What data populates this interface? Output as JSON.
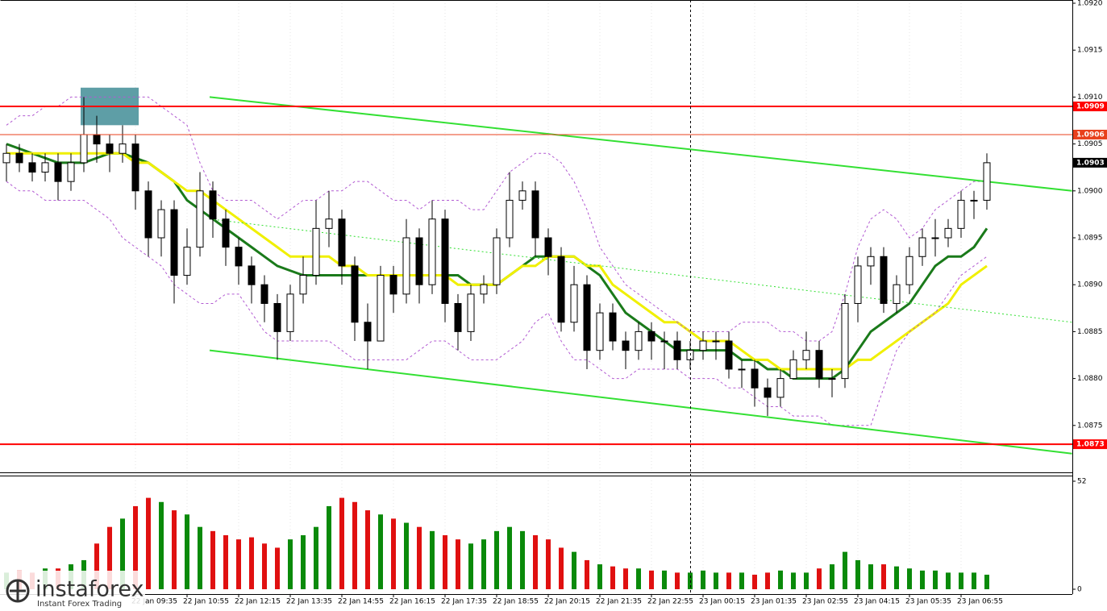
{
  "chart_data": {
    "type": "candlestick",
    "categories": [
      null,
      null,
      null,
      null,
      null,
      null,
      null,
      null,
      null,
      null,
      "22 Jan 09:35",
      null,
      null,
      null,
      "22 Jan 10:55",
      null,
      null,
      null,
      "22 Jan 12:15",
      null,
      null,
      null,
      "22 Jan 13:35",
      null,
      null,
      null,
      "22 Jan 14:55",
      null,
      null,
      null,
      "22 Jan 16:15",
      null,
      null,
      null,
      "22 Jan 17:35",
      null,
      null,
      null,
      "22 Jan 18:55",
      null,
      null,
      null,
      "22 Jan 20:15",
      null,
      null,
      null,
      "22 Jan 21:35",
      null,
      null,
      null,
      "22 Jan 22:55",
      null,
      null,
      null,
      "23 Jan 00:15",
      null,
      null,
      null,
      "23 Jan 01:35",
      null,
      null,
      null,
      "23 Jan 02:55",
      null,
      null,
      null,
      "23 Jan 04:15",
      null,
      null,
      null,
      "23 Jan 05:35",
      null,
      null,
      null,
      "23 Jan 06:55",
      null,
      null
    ],
    "open": [
      1.0903,
      1.0904,
      1.0903,
      1.0902,
      1.0903,
      1.0901,
      1.0903,
      1.0906,
      1.0905,
      1.0904,
      1.0905,
      1.09,
      1.0895,
      1.0898,
      1.0891,
      1.0894,
      1.09,
      1.0897,
      1.0894,
      1.0892,
      1.089,
      1.0888,
      1.0885,
      1.0889,
      1.0891,
      1.0896,
      1.0897,
      1.0892,
      1.0886,
      1.0884,
      1.0891,
      1.0889,
      1.0895,
      1.089,
      1.0897,
      1.0888,
      1.0885,
      1.0889,
      1.089,
      1.0895,
      1.0899,
      1.09,
      1.0895,
      1.0893,
      1.0886,
      1.089,
      1.0883,
      1.0887,
      1.0884,
      1.0883,
      1.0885,
      1.0884,
      1.0884,
      1.0882,
      1.0883,
      1.0884,
      1.0884,
      1.0881,
      1.0881,
      1.0879,
      1.0878,
      1.088,
      1.0882,
      1.0883,
      1.088,
      1.088,
      1.0888,
      1.0892,
      1.0893,
      1.0888,
      1.089,
      1.0893,
      1.0895,
      1.0895,
      1.0896,
      1.0899,
      1.0899
    ],
    "high": [
      1.0905,
      1.0905,
      1.0904,
      1.0904,
      1.0904,
      1.0904,
      1.091,
      1.0908,
      1.0906,
      1.0907,
      1.0906,
      1.0901,
      1.0899,
      1.0899,
      1.0896,
      1.0902,
      1.0901,
      1.0898,
      1.0895,
      1.0893,
      1.0891,
      1.0889,
      1.089,
      1.0893,
      1.0899,
      1.09,
      1.0898,
      1.0893,
      1.0888,
      1.0892,
      1.0892,
      1.0897,
      1.0896,
      1.0899,
      1.0898,
      1.0889,
      1.089,
      1.0891,
      1.0896,
      1.0902,
      1.0901,
      1.0901,
      1.0896,
      1.0894,
      1.0892,
      1.0891,
      1.0888,
      1.0888,
      1.0885,
      1.0886,
      1.0886,
      1.0885,
      1.0885,
      1.0884,
      1.0885,
      1.0885,
      1.0885,
      1.0882,
      1.0882,
      1.088,
      1.0881,
      1.0883,
      1.0885,
      1.0884,
      1.0881,
      1.0889,
      1.0893,
      1.0894,
      1.0894,
      1.0891,
      1.0894,
      1.0896,
      1.0897,
      1.0897,
      1.09,
      1.09,
      1.0904
    ],
    "low": [
      1.0901,
      1.0902,
      1.0901,
      1.0901,
      1.0899,
      1.09,
      1.0902,
      1.0903,
      1.0902,
      1.0903,
      1.0898,
      1.0893,
      1.0893,
      1.0888,
      1.089,
      1.0893,
      1.0895,
      1.0892,
      1.089,
      1.0888,
      1.0886,
      1.0882,
      1.0884,
      1.0888,
      1.089,
      1.0894,
      1.089,
      1.0884,
      1.0881,
      1.0884,
      1.0887,
      1.0888,
      1.0888,
      1.0889,
      1.0886,
      1.0883,
      1.0884,
      1.0888,
      1.0889,
      1.0894,
      1.0898,
      1.0893,
      1.0891,
      1.0885,
      1.0885,
      1.0881,
      1.0882,
      1.0883,
      1.0881,
      1.0882,
      1.0882,
      1.0881,
      1.0881,
      1.0881,
      1.0882,
      1.0882,
      1.088,
      1.0879,
      1.0877,
      1.0876,
      1.0877,
      1.088,
      1.0881,
      1.0879,
      1.0878,
      1.0879,
      1.0886,
      1.089,
      1.0887,
      1.0887,
      1.0889,
      1.0892,
      1.0893,
      1.0894,
      1.0895,
      1.0897,
      1.0898
    ],
    "close": [
      1.0904,
      1.0903,
      1.0902,
      1.0903,
      1.0901,
      1.0903,
      1.0906,
      1.0905,
      1.0904,
      1.0905,
      1.09,
      1.0895,
      1.0898,
      1.0891,
      1.0894,
      1.09,
      1.0897,
      1.0894,
      1.0892,
      1.089,
      1.0888,
      1.0885,
      1.0889,
      1.0891,
      1.0896,
      1.0897,
      1.0892,
      1.0886,
      1.0884,
      1.0891,
      1.0889,
      1.0895,
      1.089,
      1.0897,
      1.0888,
      1.0885,
      1.0889,
      1.089,
      1.0895,
      1.0899,
      1.09,
      1.0895,
      1.0893,
      1.0886,
      1.089,
      1.0883,
      1.0887,
      1.0884,
      1.0883,
      1.0885,
      1.0884,
      1.0884,
      1.0882,
      1.0883,
      1.0884,
      1.0884,
      1.0881,
      1.0881,
      1.0879,
      1.0878,
      1.088,
      1.0882,
      1.0883,
      1.088,
      1.088,
      1.0888,
      1.0892,
      1.0893,
      1.0888,
      1.089,
      1.0893,
      1.0895,
      1.0895,
      1.0896,
      1.0899,
      1.0899,
      1.0903
    ],
    "bull_color": "#ffffff",
    "bear_color": "#000000",
    "series": [
      {
        "color": "#1a7a1a",
        "values": [
          1.0905,
          1.09045,
          1.0904,
          1.09035,
          1.0903,
          1.0903,
          1.0903,
          1.09035,
          1.0904,
          1.0904,
          1.09035,
          1.0903,
          1.0902,
          1.0901,
          1.0899,
          1.0898,
          1.0897,
          1.0896,
          1.0895,
          1.0894,
          1.0893,
          1.0892,
          1.08915,
          1.0891,
          1.0891,
          1.0891,
          1.0891,
          1.0891,
          1.0891,
          1.0891,
          1.0891,
          1.0891,
          1.0891,
          1.0891,
          1.0891,
          1.0891,
          1.089,
          1.089,
          1.089,
          1.0891,
          1.0892,
          1.0893,
          1.0893,
          1.0893,
          1.0893,
          1.0892,
          1.0891,
          1.0889,
          1.0887,
          1.0886,
          1.0885,
          1.0884,
          1.0883,
          1.0883,
          1.0883,
          1.0883,
          1.0883,
          1.0882,
          1.0882,
          1.0881,
          1.0881,
          1.088,
          1.088,
          1.088,
          1.088,
          1.0881,
          1.0883,
          1.0885,
          1.0886,
          1.0887,
          1.0888,
          1.089,
          1.0892,
          1.0893,
          1.0893,
          1.0894,
          1.0896
        ],
        "width": 3,
        "dash": false
      },
      {
        "color": "#f0f000",
        "values": [
          1.0904,
          1.0904,
          1.0904,
          1.0904,
          1.0904,
          1.0904,
          1.0904,
          1.0904,
          1.0904,
          1.0904,
          1.0903,
          1.0903,
          1.0902,
          1.0901,
          1.09,
          1.09,
          1.0899,
          1.0898,
          1.0897,
          1.0896,
          1.0895,
          1.0894,
          1.0893,
          1.0893,
          1.0893,
          1.0893,
          1.0892,
          1.0892,
          1.0891,
          1.0891,
          1.0891,
          1.0891,
          1.0891,
          1.0891,
          1.0891,
          1.089,
          1.089,
          1.089,
          1.089,
          1.0891,
          1.0892,
          1.0892,
          1.0893,
          1.0893,
          1.0893,
          1.0892,
          1.0892,
          1.089,
          1.0889,
          1.0888,
          1.0887,
          1.0886,
          1.0886,
          1.0885,
          1.0884,
          1.0884,
          1.0884,
          1.0883,
          1.0882,
          1.0882,
          1.0881,
          1.0881,
          1.0881,
          1.0881,
          1.0881,
          1.0881,
          1.0882,
          1.0882,
          1.0883,
          1.0884,
          1.0885,
          1.0886,
          1.0887,
          1.0888,
          1.089,
          1.0891,
          1.0892
        ],
        "width": 3,
        "dash": false
      },
      {
        "color": "#b25ad2",
        "values": [
          1.0907,
          1.0908,
          1.0908,
          1.0909,
          1.0909,
          1.091,
          1.091,
          1.091,
          1.091,
          1.091,
          1.091,
          1.091,
          1.0909,
          1.0908,
          1.0907,
          1.0903,
          1.09,
          1.0899,
          1.0899,
          1.0899,
          1.0898,
          1.0897,
          1.0898,
          1.0899,
          1.0899,
          1.09,
          1.09,
          1.0901,
          1.0901,
          1.09,
          1.0899,
          1.0899,
          1.0898,
          1.0899,
          1.0899,
          1.0899,
          1.0898,
          1.0898,
          1.09,
          1.0902,
          1.0903,
          1.0904,
          1.0904,
          1.0903,
          1.0901,
          1.0898,
          1.0894,
          1.0892,
          1.089,
          1.0889,
          1.0888,
          1.0887,
          1.0886,
          1.0885,
          1.0885,
          1.0885,
          1.0885,
          1.0886,
          1.0886,
          1.0886,
          1.0885,
          1.0885,
          1.0884,
          1.0884,
          1.0885,
          1.0889,
          1.0894,
          1.0897,
          1.0898,
          1.0897,
          1.0895,
          1.0896,
          1.0898,
          1.0899,
          1.09,
          1.0901,
          1.0901
        ],
        "width": 1,
        "dash": true
      },
      {
        "color": "#b25ad2",
        "values": [
          1.0901,
          1.09,
          1.09,
          1.0899,
          1.0899,
          1.0899,
          1.0899,
          1.0898,
          1.0897,
          1.0895,
          1.0894,
          1.0893,
          1.0892,
          1.089,
          1.0889,
          1.0888,
          1.0888,
          1.0889,
          1.0889,
          1.0887,
          1.0885,
          1.0884,
          1.0884,
          1.0884,
          1.0884,
          1.0884,
          1.0883,
          1.0882,
          1.0882,
          1.0882,
          1.0882,
          1.0882,
          1.0883,
          1.0884,
          1.0884,
          1.0883,
          1.0882,
          1.0882,
          1.0882,
          1.0883,
          1.0884,
          1.0886,
          1.0887,
          1.0884,
          1.0882,
          1.0882,
          1.0881,
          1.088,
          1.088,
          1.0881,
          1.0881,
          1.0881,
          1.0881,
          1.088,
          1.088,
          1.088,
          1.0879,
          1.0879,
          1.0878,
          1.0877,
          1.0877,
          1.0876,
          1.0876,
          1.0876,
          1.0875,
          1.0875,
          1.0875,
          1.0875,
          1.0879,
          1.0883,
          1.0885,
          1.0886,
          1.0887,
          1.0889,
          1.0891,
          1.0892,
          1.0893
        ],
        "width": 1,
        "dash": true
      }
    ],
    "ylim": [
      1.087,
      1.092
    ],
    "yticks": [
      1.0875,
      {
        "value": 1.088,
        "label": "1.0880"
      },
      1.0885,
      {
        "value": 1.089,
        "label": "1.0890"
      },
      1.0895,
      {
        "value": 1.09,
        "label": "1.0900"
      },
      1.0905,
      {
        "value": 1.091,
        "label": "1.0910"
      },
      1.0915,
      {
        "value": 1.092,
        "label": "1.0920"
      }
    ],
    "grid": true,
    "levels": [
      {
        "value": 1.0909,
        "color": "#ff0000",
        "width": 2
      },
      {
        "value": 1.0906,
        "color": "#e8401c",
        "width": 1
      },
      {
        "value": 1.0873,
        "color": "#ff0000",
        "width": 2
      },
      {
        "value": 1.0903,
        "color": "#000000",
        "width": 0
      }
    ],
    "trend_lines": [
      {
        "color": "#33e033",
        "x": [
          15.75,
          82.6
        ],
        "y": [
          1.091,
          1.09
        ],
        "dash": false
      },
      {
        "color": "#33e033",
        "x": [
          15.75,
          82.6
        ],
        "y": [
          1.0883,
          1.0872
        ],
        "dash": false
      },
      {
        "color": "#33e033",
        "x": [
          15.75,
          82.6
        ],
        "y": [
          1.0897,
          1.0886
        ],
        "dash": true
      }
    ],
    "zone": {
      "color": "#5e9ea6",
      "x": [
        5.75,
        10.25
      ],
      "y": [
        1.0907,
        1.0911
      ]
    },
    "volume": [
      8,
      9,
      8,
      10,
      10,
      12,
      14,
      22,
      30,
      34,
      40,
      44,
      42,
      38,
      36,
      30,
      28,
      26,
      24,
      25,
      22,
      20,
      24,
      26,
      30,
      40,
      44,
      42,
      38,
      36,
      34,
      32,
      30,
      28,
      26,
      24,
      22,
      24,
      28,
      30,
      28,
      26,
      24,
      20,
      18,
      14,
      12,
      11,
      10,
      10,
      9,
      9,
      8,
      8,
      9,
      8,
      8,
      8,
      7,
      8,
      9,
      8,
      8,
      10,
      12,
      18,
      14,
      12,
      12,
      11,
      10,
      9,
      9,
      8,
      8,
      8,
      7
    ],
    "volume_up_color": "#0a8a0a",
    "volume_down_color": "#e01010",
    "vlim": [
      0,
      52
    ],
    "vticks": [
      0,
      52
    ]
  },
  "watermark": {
    "brand": "instaforex",
    "tagline": "Instant Forex Trading"
  }
}
